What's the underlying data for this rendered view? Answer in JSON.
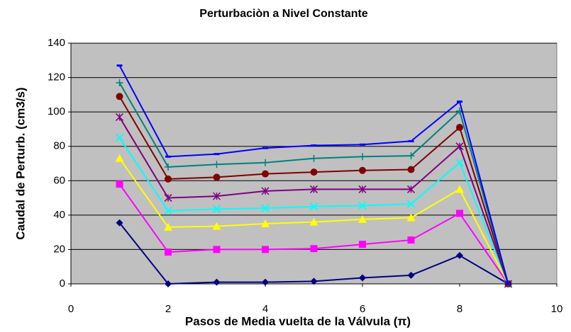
{
  "chart_data": {
    "type": "line",
    "title": "Perturbaciòn a Nivel Constante",
    "xlabel": "Pasos de Media vuelta de la Válvula (π)",
    "ylabel": "Caudal de Perturb. (cm3/s)",
    "x": [
      1,
      2,
      3,
      4,
      5,
      6,
      7,
      8,
      9
    ],
    "series": [
      {
        "color": "#000080",
        "marker": "diamond",
        "values": [
          35.5,
          0,
          1,
          1,
          1.5,
          3.5,
          5,
          16.5,
          0
        ]
      },
      {
        "color": "#ff00ff",
        "marker": "square",
        "values": [
          58,
          18.5,
          20,
          20,
          20.5,
          23,
          25.5,
          41,
          0
        ]
      },
      {
        "color": "#ffff00",
        "marker": "triangle",
        "values": [
          73,
          33,
          33.5,
          35,
          36,
          37.5,
          38.5,
          55,
          0
        ]
      },
      {
        "color": "#00ffff",
        "marker": "x",
        "values": [
          85,
          42.5,
          43.5,
          44,
          45,
          45.5,
          46.5,
          70.5,
          0
        ]
      },
      {
        "color": "#800080",
        "marker": "star",
        "values": [
          97,
          50,
          51,
          54,
          55,
          55,
          55,
          80,
          0
        ]
      },
      {
        "color": "#800000",
        "marker": "circle",
        "values": [
          109,
          61,
          62,
          64,
          65,
          66,
          66.5,
          91,
          0
        ]
      },
      {
        "color": "#008080",
        "marker": "plus",
        "values": [
          117,
          68,
          69.5,
          70.5,
          73,
          74,
          74.5,
          100.5,
          0
        ]
      },
      {
        "color": "#0000ff",
        "marker": "dash",
        "values": [
          127,
          74,
          75.5,
          79,
          80.5,
          81,
          83,
          106,
          0
        ]
      }
    ],
    "xlim": [
      0,
      10
    ],
    "xticks": [
      0,
      2,
      4,
      6,
      8,
      10
    ],
    "ylim": [
      0,
      140
    ],
    "yticks": [
      0,
      20,
      40,
      60,
      80,
      100,
      120,
      140
    ],
    "grid": true,
    "plot_background": "#c0c0c0"
  }
}
